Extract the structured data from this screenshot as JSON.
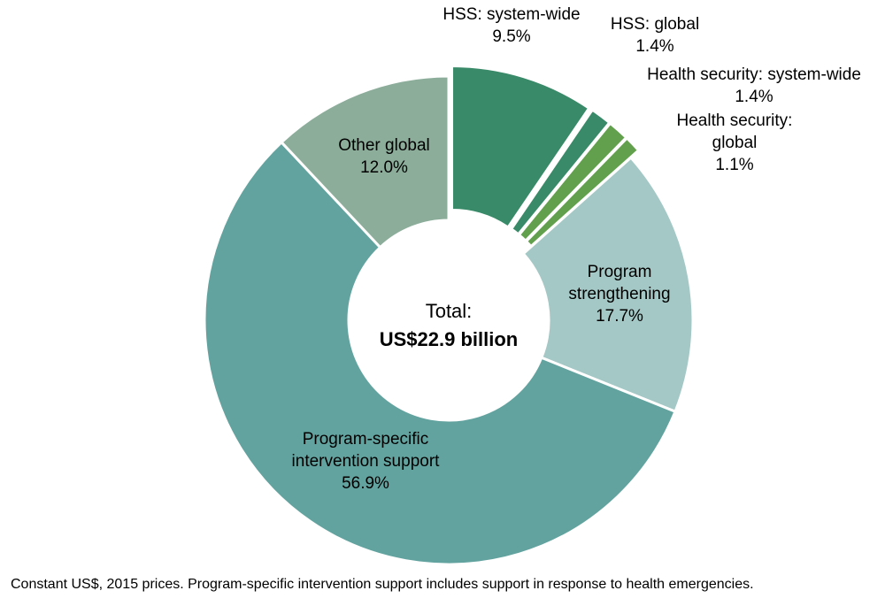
{
  "chart_data": {
    "type": "pie",
    "variant": "donut",
    "center_text": {
      "line1": "Total:",
      "line2": "US$22.9 billion"
    },
    "slices": [
      {
        "label_lines": [
          "HSS: system-wide",
          "9.5%"
        ],
        "value": 9.5,
        "color": "#398a68",
        "exploded": true
      },
      {
        "label_lines": [
          "HSS: global",
          "1.4%"
        ],
        "value": 1.4,
        "color": "#398a68",
        "exploded": true
      },
      {
        "label_lines": [
          "Health security: system-wide",
          "1.4%"
        ],
        "value": 1.4,
        "color": "#62a04d",
        "exploded": true
      },
      {
        "label_lines": [
          "Health security:",
          "global",
          "1.1%"
        ],
        "value": 1.1,
        "color": "#62a04d",
        "exploded": true
      },
      {
        "label_lines": [
          "Program",
          "strengthening",
          "17.7%"
        ],
        "value": 17.7,
        "color": "#a4c8c5",
        "exploded": false
      },
      {
        "label_lines": [
          "Program-specific",
          "intervention support",
          "56.9%"
        ],
        "value": 56.9,
        "color": "#63a39f",
        "exploded": false
      },
      {
        "label_lines": [
          "Other global",
          "12.0%"
        ],
        "value": 12.0,
        "color": "#8bad9a",
        "exploded": false
      }
    ]
  },
  "footnote": "Constant US$, 2015 prices. Program-specific intervention support includes support in response to health emergencies."
}
